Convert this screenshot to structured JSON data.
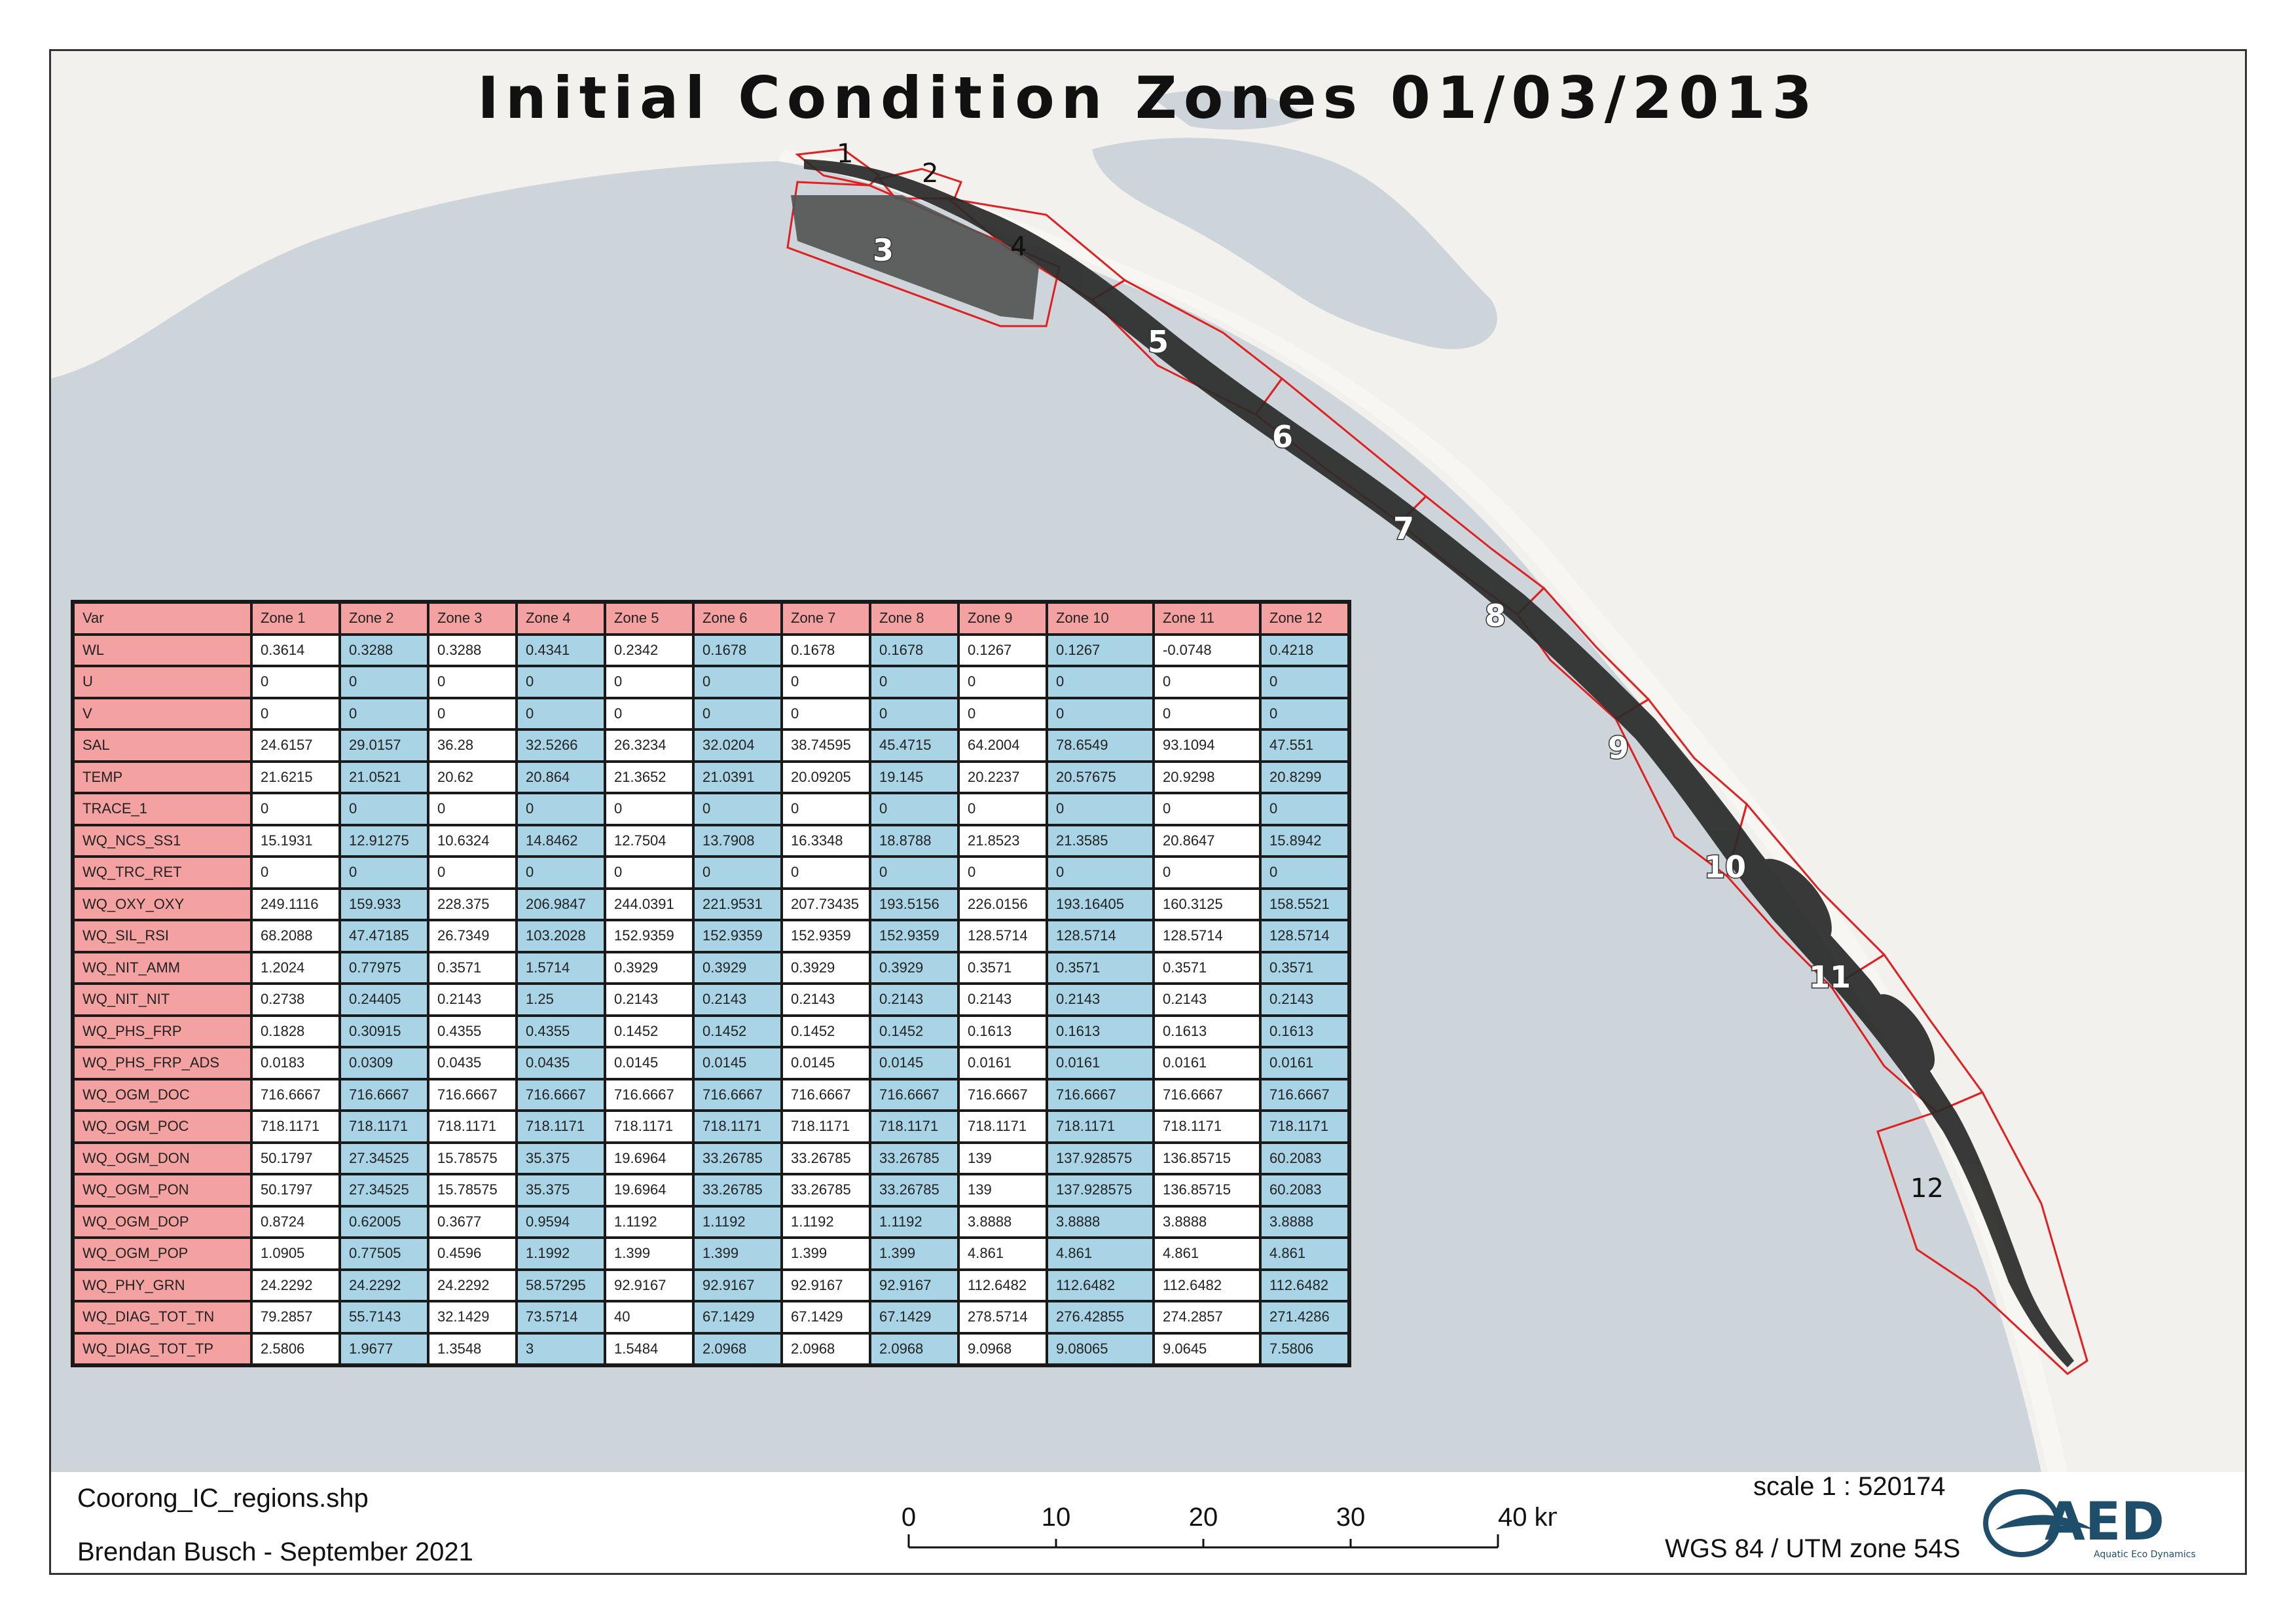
{
  "title": "Initial Condition Zones 01/03/2013",
  "colors": {
    "sea": "#cdd5db",
    "land": "#f2f1ee",
    "zone_outline": "#e02020",
    "mesh": "#2a2a2a",
    "table_header": "#f4a1a1",
    "table_blue": "#a8d4e6"
  },
  "zone_labels": [
    "1",
    "2",
    "3",
    "4",
    "5",
    "6",
    "7",
    "8",
    "9",
    "10",
    "11",
    "12"
  ],
  "table": {
    "headers": [
      "Var",
      "Zone 1",
      "Zone 2",
      "Zone 3",
      "Zone 4",
      "Zone 5",
      "Zone 6",
      "Zone 7",
      "Zone 8",
      "Zone 9",
      "Zone 10",
      "Zone 11",
      "Zone 12"
    ],
    "rows": [
      [
        "WL",
        "0.3614",
        "0.3288",
        "0.3288",
        "0.4341",
        "0.2342",
        "0.1678",
        "0.1678",
        "0.1678",
        "0.1267",
        "0.1267",
        "-0.0748",
        "0.4218"
      ],
      [
        "U",
        "0",
        "0",
        "0",
        "0",
        "0",
        "0",
        "0",
        "0",
        "0",
        "0",
        "0",
        "0"
      ],
      [
        "V",
        "0",
        "0",
        "0",
        "0",
        "0",
        "0",
        "0",
        "0",
        "0",
        "0",
        "0",
        "0"
      ],
      [
        "SAL",
        "24.6157",
        "29.0157",
        "36.28",
        "32.5266",
        "26.3234",
        "32.0204",
        "38.74595",
        "45.4715",
        "64.2004",
        "78.6549",
        "93.1094",
        "47.551"
      ],
      [
        "TEMP",
        "21.6215",
        "21.0521",
        "20.62",
        "20.864",
        "21.3652",
        "21.0391",
        "20.09205",
        "19.145",
        "20.2237",
        "20.57675",
        "20.9298",
        "20.8299"
      ],
      [
        "TRACE_1",
        "0",
        "0",
        "0",
        "0",
        "0",
        "0",
        "0",
        "0",
        "0",
        "0",
        "0",
        "0"
      ],
      [
        "WQ_NCS_SS1",
        "15.1931",
        "12.91275",
        "10.6324",
        "14.8462",
        "12.7504",
        "13.7908",
        "16.3348",
        "18.8788",
        "21.8523",
        "21.3585",
        "20.8647",
        "15.8942"
      ],
      [
        "WQ_TRC_RET",
        "0",
        "0",
        "0",
        "0",
        "0",
        "0",
        "0",
        "0",
        "0",
        "0",
        "0",
        "0"
      ],
      [
        "WQ_OXY_OXY",
        "249.1116",
        "159.933",
        "228.375",
        "206.9847",
        "244.0391",
        "221.9531",
        "207.73435",
        "193.5156",
        "226.0156",
        "193.16405",
        "160.3125",
        "158.5521"
      ],
      [
        "WQ_SIL_RSI",
        "68.2088",
        "47.47185",
        "26.7349",
        "103.2028",
        "152.9359",
        "152.9359",
        "152.9359",
        "152.9359",
        "128.5714",
        "128.5714",
        "128.5714",
        "128.5714"
      ],
      [
        "WQ_NIT_AMM",
        "1.2024",
        "0.77975",
        "0.3571",
        "1.5714",
        "0.3929",
        "0.3929",
        "0.3929",
        "0.3929",
        "0.3571",
        "0.3571",
        "0.3571",
        "0.3571"
      ],
      [
        "WQ_NIT_NIT",
        "0.2738",
        "0.24405",
        "0.2143",
        "1.25",
        "0.2143",
        "0.2143",
        "0.2143",
        "0.2143",
        "0.2143",
        "0.2143",
        "0.2143",
        "0.2143"
      ],
      [
        "WQ_PHS_FRP",
        "0.1828",
        "0.30915",
        "0.4355",
        "0.4355",
        "0.1452",
        "0.1452",
        "0.1452",
        "0.1452",
        "0.1613",
        "0.1613",
        "0.1613",
        "0.1613"
      ],
      [
        "WQ_PHS_FRP_ADS",
        "0.0183",
        "0.0309",
        "0.0435",
        "0.0435",
        "0.0145",
        "0.0145",
        "0.0145",
        "0.0145",
        "0.0161",
        "0.0161",
        "0.0161",
        "0.0161"
      ],
      [
        "WQ_OGM_DOC",
        "716.6667",
        "716.6667",
        "716.6667",
        "716.6667",
        "716.6667",
        "716.6667",
        "716.6667",
        "716.6667",
        "716.6667",
        "716.6667",
        "716.6667",
        "716.6667"
      ],
      [
        "WQ_OGM_POC",
        "718.1171",
        "718.1171",
        "718.1171",
        "718.1171",
        "718.1171",
        "718.1171",
        "718.1171",
        "718.1171",
        "718.1171",
        "718.1171",
        "718.1171",
        "718.1171"
      ],
      [
        "WQ_OGM_DON",
        "50.1797",
        "27.34525",
        "15.78575",
        "35.375",
        "19.6964",
        "33.26785",
        "33.26785",
        "33.26785",
        "139",
        "137.928575",
        "136.85715",
        "60.2083"
      ],
      [
        "WQ_OGM_PON",
        "50.1797",
        "27.34525",
        "15.78575",
        "35.375",
        "19.6964",
        "33.26785",
        "33.26785",
        "33.26785",
        "139",
        "137.928575",
        "136.85715",
        "60.2083"
      ],
      [
        "WQ_OGM_DOP",
        "0.8724",
        "0.62005",
        "0.3677",
        "0.9594",
        "1.1192",
        "1.1192",
        "1.1192",
        "1.1192",
        "3.8888",
        "3.8888",
        "3.8888",
        "3.8888"
      ],
      [
        "WQ_OGM_POP",
        "1.0905",
        "0.77505",
        "0.4596",
        "1.1992",
        "1.399",
        "1.399",
        "1.399",
        "1.399",
        "4.861",
        "4.861",
        "4.861",
        "4.861"
      ],
      [
        "WQ_PHY_GRN",
        "24.2292",
        "24.2292",
        "24.2292",
        "58.57295",
        "92.9167",
        "92.9167",
        "92.9167",
        "92.9167",
        "112.6482",
        "112.6482",
        "112.6482",
        "112.6482"
      ],
      [
        "WQ_DIAG_TOT_TN",
        "79.2857",
        "55.7143",
        "32.1429",
        "73.5714",
        "40",
        "67.1429",
        "67.1429",
        "67.1429",
        "278.5714",
        "276.42855",
        "274.2857",
        "271.4286"
      ],
      [
        "WQ_DIAG_TOT_TP",
        "2.5806",
        "1.9677",
        "1.3548",
        "3",
        "1.5484",
        "2.0968",
        "2.0968",
        "2.0968",
        "9.0968",
        "9.08065",
        "9.0645",
        "7.5806"
      ]
    ]
  },
  "footer": {
    "shapefile": "Coorong_IC_regions.shp",
    "author": "Brendan Busch - September 2021",
    "scale": "scale 1 : 520174",
    "crs": "WGS 84 / UTM zone 54S",
    "scalebar_ticks": [
      "0",
      "10",
      "20",
      "30",
      "40 km"
    ],
    "logo_text": "AED",
    "logo_subtitle": "Aquatic Eco Dynamics"
  }
}
